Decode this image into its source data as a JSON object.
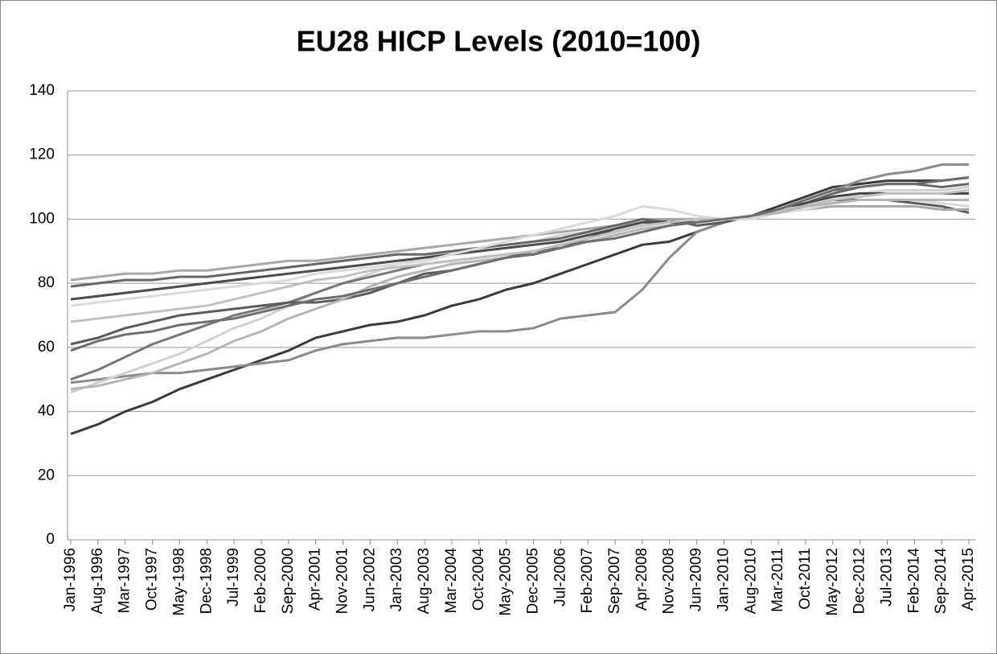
{
  "chart_data": {
    "type": "line",
    "title": "EU28 HICP Levels (2010=100)",
    "categories": [
      "Jan-1996",
      "Aug-1996",
      "Mar-1997",
      "Oct-1997",
      "May-1998",
      "Dec-1998",
      "Jul-1999",
      "Feb-2000",
      "Sep-2000",
      "Apr-2001",
      "Nov-2001",
      "Jun-2002",
      "Jan-2003",
      "Aug-2003",
      "Mar-2004",
      "Oct-2004",
      "May-2005",
      "Dec-2005",
      "Jul-2006",
      "Feb-2007",
      "Sep-2007",
      "Apr-2008",
      "Nov-2008",
      "Jun-2009",
      "Jan-2010",
      "Aug-2010",
      "Mar-2011",
      "Oct-2011",
      "May-2012",
      "Dec-2012",
      "Jul-2013",
      "Feb-2014",
      "Sep-2014",
      "Apr-2015"
    ],
    "ylim": [
      0,
      140
    ],
    "yticks": [
      0,
      20,
      40,
      60,
      80,
      100,
      120,
      140
    ],
    "grid": true,
    "series": [
      {
        "color": "#3a3a3a",
        "values": [
          33,
          36,
          40,
          43,
          47,
          50,
          53,
          56,
          59,
          63,
          65,
          67,
          68,
          70,
          73,
          75,
          78,
          80,
          83,
          86,
          89,
          92,
          93,
          96,
          99,
          101,
          104,
          107,
          110,
          111,
          112,
          112,
          112,
          113
        ]
      },
      {
        "color": "#8a8a8a",
        "values": [
          49,
          50,
          51,
          52,
          52,
          53,
          54,
          55,
          56,
          59,
          61,
          62,
          63,
          63,
          64,
          65,
          65,
          66,
          69,
          70,
          71,
          78,
          88,
          96,
          99,
          101,
          103,
          106,
          109,
          112,
          114,
          115,
          117,
          117
        ]
      },
      {
        "color": "#d0d0d0",
        "values": [
          46,
          49,
          52,
          55,
          58,
          62,
          66,
          69,
          73,
          77,
          80,
          83,
          86,
          88,
          90,
          91,
          92,
          93,
          95,
          96,
          98,
          99,
          100,
          100,
          100,
          101,
          103,
          105,
          107,
          108,
          109,
          109,
          109,
          110
        ]
      },
      {
        "color": "#777777",
        "values": [
          50,
          53,
          57,
          61,
          64,
          67,
          70,
          72,
          74,
          77,
          80,
          82,
          84,
          86,
          87,
          88,
          89,
          90,
          92,
          94,
          96,
          98,
          99,
          99,
          100,
          101,
          103,
          105,
          107,
          108,
          108,
          108,
          108,
          108
        ]
      },
      {
        "color": "#5a5a5a",
        "values": [
          61,
          63,
          66,
          68,
          70,
          71,
          72,
          73,
          74,
          74,
          75,
          77,
          80,
          83,
          84,
          86,
          88,
          90,
          91,
          94,
          97,
          99,
          100,
          98,
          99,
          101,
          103,
          104,
          106,
          106,
          106,
          105,
          104,
          102
        ]
      },
      {
        "color": "#a8a8a8",
        "values": [
          81,
          82,
          83,
          83,
          84,
          84,
          85,
          86,
          87,
          87,
          88,
          89,
          90,
          91,
          92,
          93,
          94,
          95,
          96,
          97,
          98,
          100,
          100,
          100,
          100,
          101,
          102,
          103,
          104,
          104,
          104,
          104,
          103,
          103
        ]
      },
      {
        "color": "#666666",
        "values": [
          79,
          80,
          81,
          81,
          82,
          82,
          83,
          84,
          85,
          86,
          87,
          88,
          89,
          89,
          90,
          91,
          92,
          93,
          94,
          96,
          98,
          100,
          99,
          99,
          100,
          101,
          103,
          105,
          108,
          110,
          111,
          111,
          110,
          111
        ]
      },
      {
        "color": "#4a4a4a",
        "values": [
          75,
          76,
          77,
          78,
          79,
          80,
          81,
          82,
          83,
          84,
          85,
          86,
          87,
          88,
          89,
          90,
          91,
          92,
          93,
          95,
          97,
          99,
          99,
          99,
          100,
          101,
          103,
          105,
          107,
          108,
          108,
          108,
          108,
          108
        ]
      },
      {
        "color": "#dadada",
        "values": [
          73,
          74,
          75,
          76,
          77,
          78,
          79,
          80,
          81,
          83,
          84,
          85,
          86,
          87,
          89,
          91,
          93,
          95,
          97,
          99,
          101,
          104,
          103,
          101,
          100,
          100,
          102,
          103,
          105,
          106,
          106,
          106,
          105,
          104
        ]
      },
      {
        "color": "#c0c0c0",
        "values": [
          68,
          69,
          70,
          71,
          72,
          73,
          75,
          77,
          79,
          81,
          82,
          84,
          85,
          86,
          87,
          88,
          89,
          90,
          92,
          94,
          96,
          98,
          99,
          100,
          100,
          101,
          103,
          104,
          106,
          107,
          108,
          108,
          108,
          109
        ]
      },
      {
        "color": "#b4b4b4",
        "values": [
          47,
          48,
          50,
          52,
          55,
          58,
          62,
          65,
          69,
          72,
          75,
          79,
          82,
          84,
          86,
          87,
          88,
          89,
          91,
          93,
          95,
          97,
          98,
          99,
          100,
          101,
          102,
          104,
          105,
          106,
          106,
          106,
          106,
          106
        ]
      },
      {
        "color": "#6e6e6e",
        "values": [
          59,
          62,
          64,
          65,
          67,
          68,
          69,
          71,
          73,
          75,
          76,
          78,
          80,
          82,
          84,
          86,
          88,
          89,
          91,
          93,
          94,
          96,
          98,
          99,
          100,
          101,
          103,
          106,
          109,
          110,
          111,
          111,
          112,
          113
        ]
      }
    ]
  }
}
